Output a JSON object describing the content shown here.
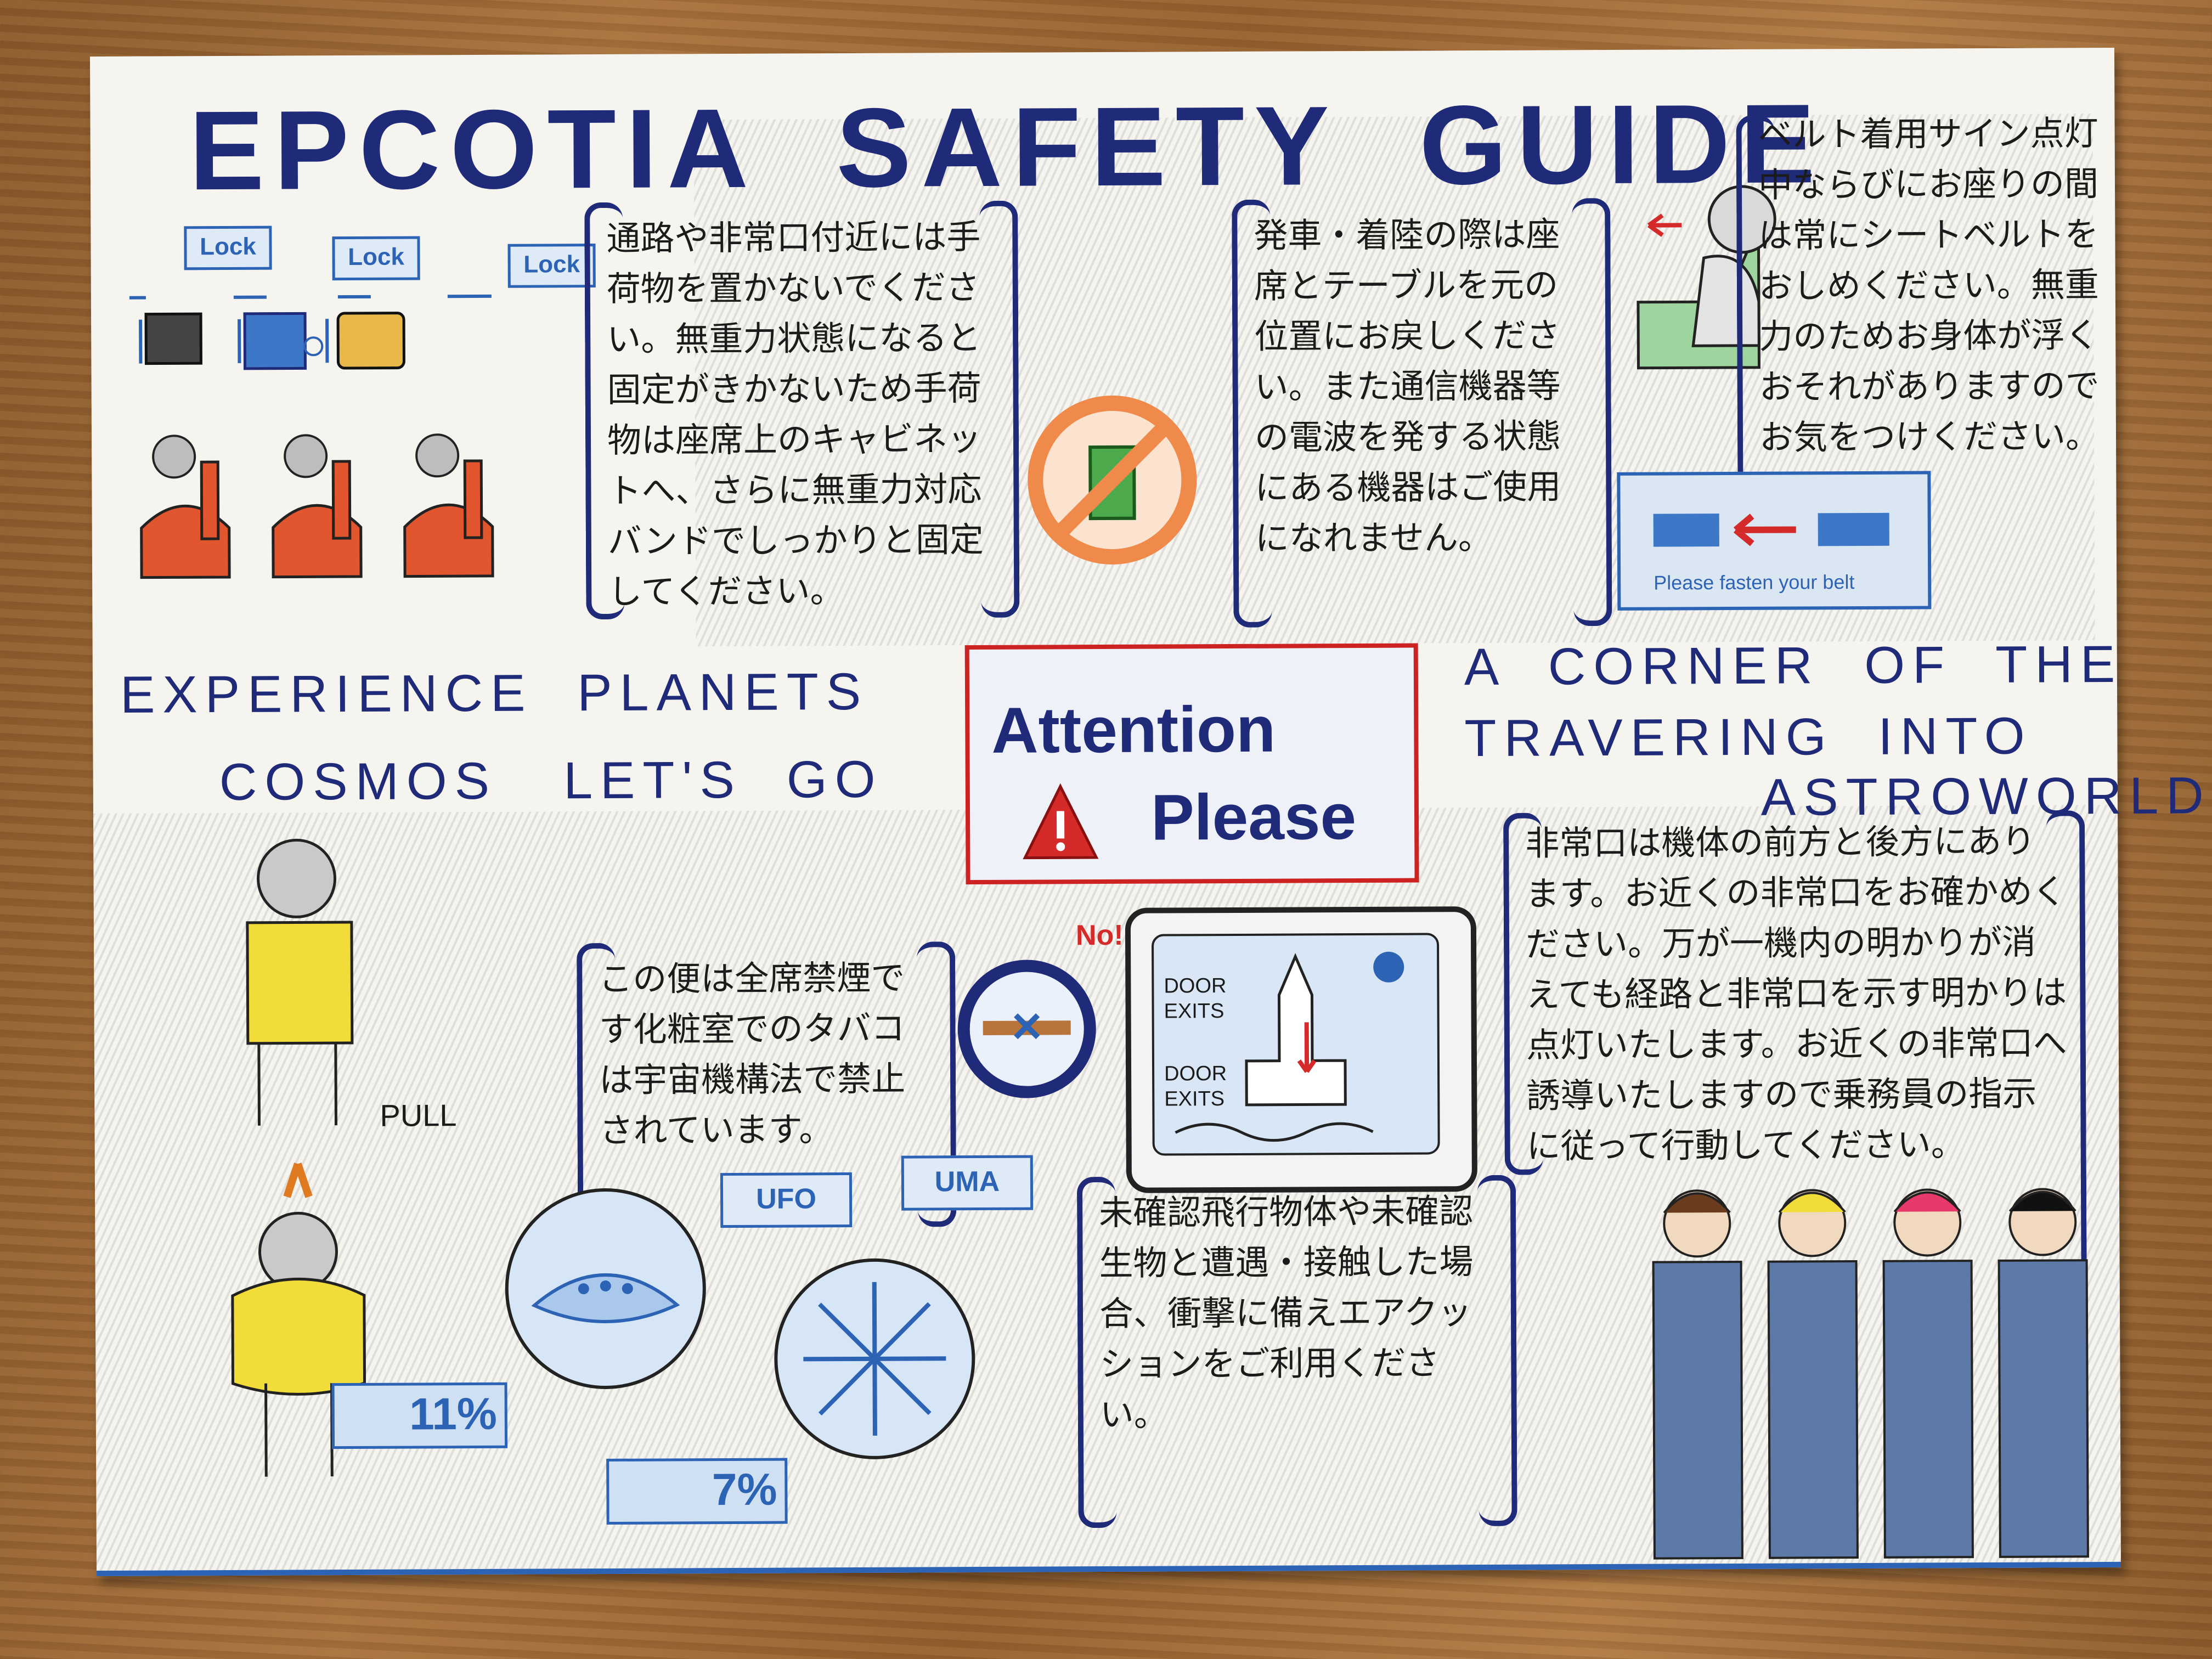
{
  "title": "EPCOTIA  SAFETY  GUIDE",
  "luggage": {
    "lock_labels": [
      "Lock",
      "Lock",
      "Lock"
    ],
    "text": "通路や非常口付近には手荷物を置かないでください。無重力状態になると固定がきかないため手荷物は座席上のキャビネットへ、さらに無重力対応バンドでしっかりと固定してください。"
  },
  "devices": {
    "text": "発車・着陸の際は座席とテーブルを元の位置にお戻しください。また通信機器等の電波を発する状態にある機器はご使用になれません。"
  },
  "seatbelt": {
    "text": "ベルト着用サイン点灯中ならびにお座りの間は常にシートベルトをおしめください。無重力のためお身体が浮くおそれがありますのでお気をつけください。",
    "sign_text": "Please fasten your belt"
  },
  "banner": {
    "left_line1": "EXPERIENCE  PLANETS",
    "left_line2": "COSMOS   LET'S  GO",
    "center_line1": "Attention",
    "center_line2": "Please",
    "right_line1": "A  CORNER  OF  THE",
    "right_line2": "TRAVERING  INTO",
    "right_line3": "ASTROWORLD"
  },
  "lifevest": {
    "pull_label": "PULL"
  },
  "smoking": {
    "no_label": "No!",
    "text": "この便は全席禁煙です化粧室でのタバコは宇宙機構法で禁止されています。"
  },
  "exits": {
    "door_label_1": "DOOR\nEXITS",
    "door_label_2": "DOOR\nEXITS",
    "text": "非常口は機体の前方と後方にあります。お近くの非常口をお確かめください。万が一機内の明かりが消えても経路と非常口を示す明かりは点灯いたします。お近くの非常口へ誘導いたしますので乗務員の指示に従って行動してください。"
  },
  "ufo": {
    "ufo_label": "UFO",
    "uma_label": "UMA",
    "ufo_percent": "11%",
    "uma_percent": "7%",
    "text": "未確認飛行物体や未確認生物と遭遇・接触した場合、衝撃に備えエアクッションをご利用ください。"
  },
  "colors": {
    "navy": "#1f2a78",
    "red": "#d42a2a",
    "blue": "#2d63b5",
    "yellow": "#f2dc3a"
  }
}
